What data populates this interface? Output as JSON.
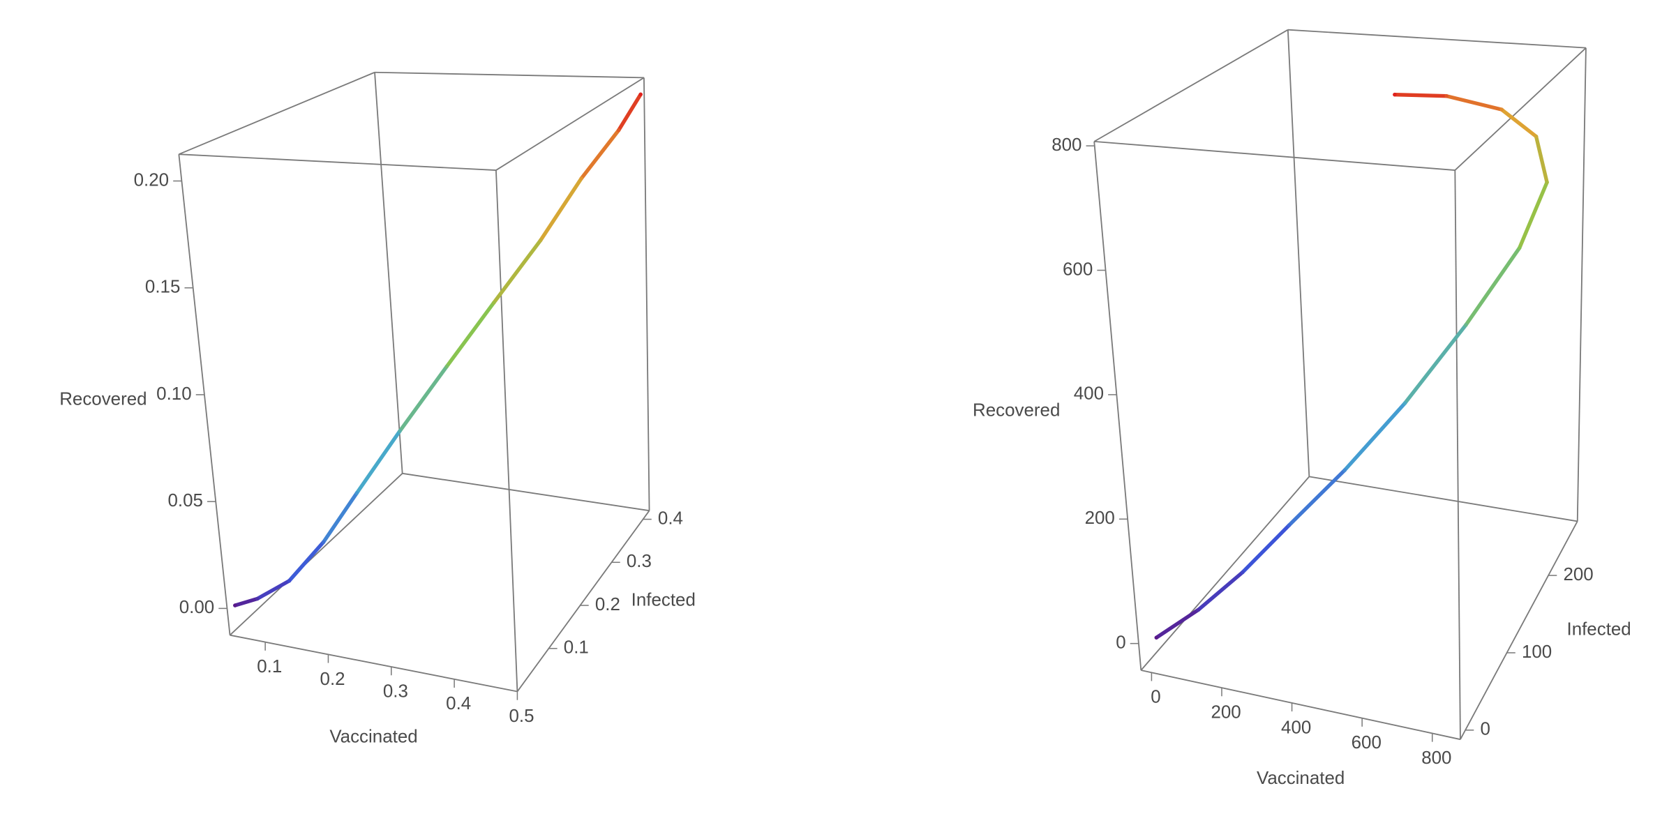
{
  "chart_data": [
    {
      "type": "line3d",
      "xlabel": "Vaccinated",
      "ylabel": "Infected",
      "zlabel": "Recovered",
      "x": [
        0.05,
        0.08,
        0.12,
        0.16,
        0.2,
        0.25,
        0.3,
        0.35,
        0.4,
        0.44,
        0.48,
        0.5
      ],
      "y": [
        0.01,
        0.02,
        0.04,
        0.07,
        0.1,
        0.14,
        0.19,
        0.24,
        0.29,
        0.34,
        0.38,
        0.41
      ],
      "z": [
        0,
        0.003,
        0.01,
        0.025,
        0.045,
        0.07,
        0.095,
        0.12,
        0.145,
        0.17,
        0.19,
        0.205
      ],
      "xlim": [
        0.044,
        0.5
      ],
      "ylim": [
        0,
        0.42
      ],
      "zlim": [
        -0.0125,
        0.2125
      ],
      "xticks": [
        0.1,
        0.2,
        0.3,
        0.4,
        0.5
      ],
      "yticks": [
        0.1,
        0.2,
        0.3,
        0.4
      ],
      "zticks": [
        {
          "value": 0,
          "label": "0.00"
        },
        {
          "value": 0.05,
          "label": "0.05"
        },
        {
          "value": 0.1,
          "label": "0.10"
        },
        {
          "value": 0.15,
          "label": "0.15"
        },
        {
          "value": 0.2,
          "label": "0.20"
        }
      ],
      "colors": [
        "#5a1a8a",
        "#3c50d8",
        "#45a8d0",
        "#8cc54a",
        "#e2a232",
        "#e0221e"
      ]
    },
    {
      "type": "line3d",
      "xlabel": "Vaccinated",
      "ylabel": "Infected",
      "zlabel": "Recovered",
      "x": [
        0,
        100,
        200,
        300,
        420,
        540,
        650,
        740,
        780,
        760,
        700,
        600,
        500
      ],
      "y": [
        0,
        15,
        35,
        60,
        90,
        130,
        180,
        230,
        260,
        250,
        220,
        180,
        150
      ],
      "z": [
        0,
        40,
        90,
        150,
        220,
        300,
        390,
        480,
        570,
        660,
        730,
        780,
        800
      ],
      "xlim": [
        -30,
        880
      ],
      "ylim": [
        -12,
        270
      ],
      "zlim": [
        -43,
        807
      ],
      "xticks": [
        0,
        200,
        400,
        600,
        800
      ],
      "yticks": [
        0,
        100,
        200
      ],
      "zticks": [
        0,
        200,
        400,
        600,
        800
      ],
      "colors": [
        "#5a1a8a",
        "#3c50d8",
        "#45a8d0",
        "#8cc54a",
        "#e2a232",
        "#e0221e"
      ]
    }
  ]
}
